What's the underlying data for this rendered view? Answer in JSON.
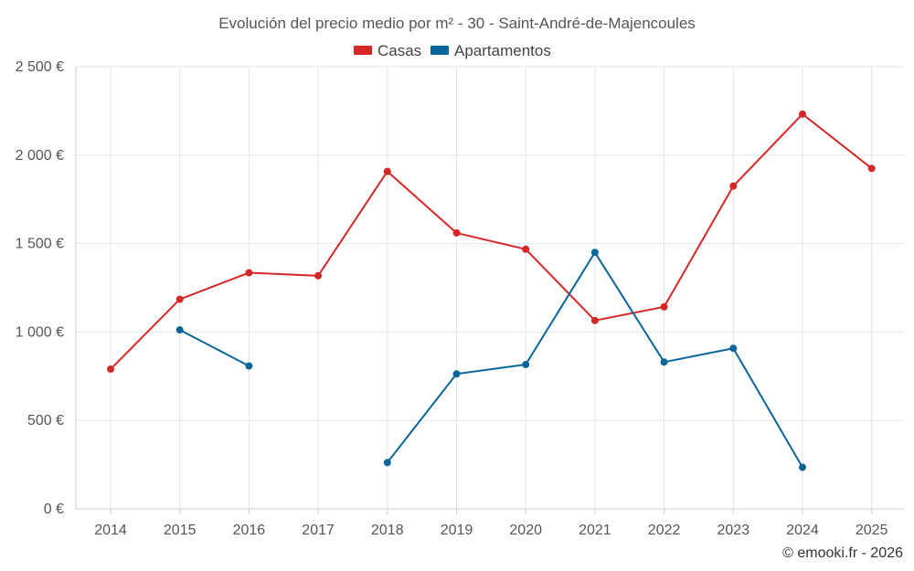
{
  "chart_data": {
    "type": "line",
    "title": "Evolución del precio medio por m² - 30 - Saint-André-de-Majencoules",
    "categories": [
      "2014",
      "2015",
      "2016",
      "2017",
      "2018",
      "2019",
      "2020",
      "2021",
      "2022",
      "2023",
      "2024",
      "2025"
    ],
    "y_ticks": [
      0,
      500,
      1000,
      1500,
      2000,
      2500
    ],
    "y_tick_labels": [
      "0 €",
      "500 €",
      "1 000 €",
      "1 500 €",
      "2 000 €",
      "2 500 €"
    ],
    "ylim": [
      0,
      2500
    ],
    "grid": true,
    "legend_position": "top-center",
    "series": [
      {
        "name": "Casas",
        "color": "#d62728",
        "values": [
          790,
          1185,
          1335,
          1318,
          1908,
          1560,
          1468,
          1065,
          1142,
          1825,
          2232,
          1925
        ]
      },
      {
        "name": "Apartamentos",
        "color": "#0a6699",
        "values": [
          null,
          1012,
          808,
          null,
          262,
          763,
          816,
          1450,
          830,
          908,
          235,
          null
        ]
      }
    ]
  },
  "credit": "© emooki.fr - 2026"
}
